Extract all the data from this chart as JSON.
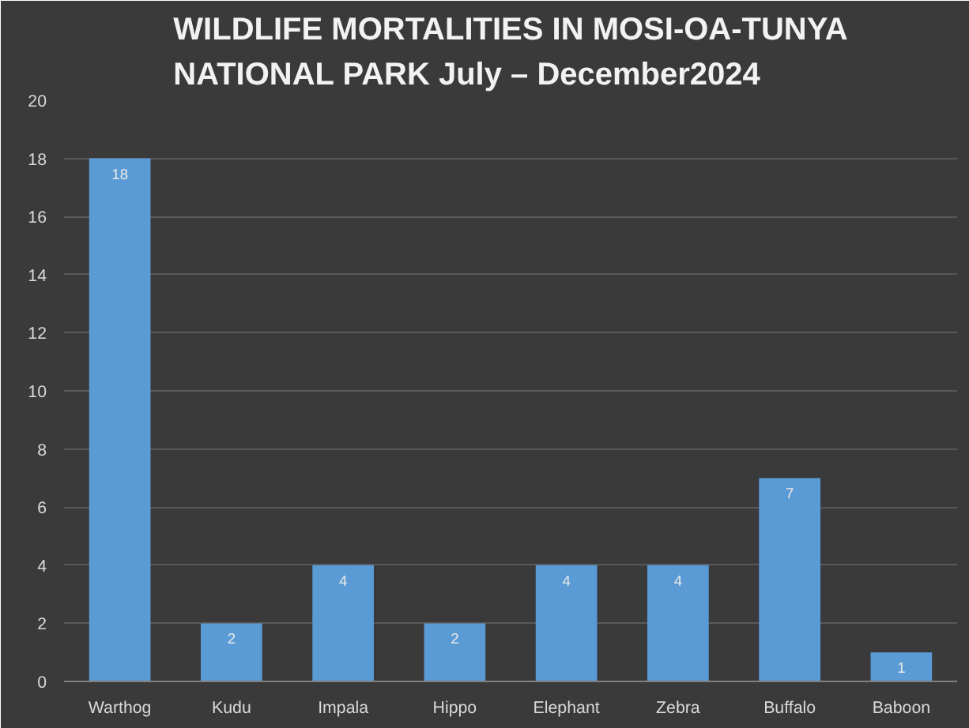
{
  "chart_data": {
    "type": "bar",
    "title": "WILDLIFE MORTALITIES IN MOSI-OA-TUNYA\nNATIONAL PARK July – December2024",
    "categories": [
      "Warthog",
      "Kudu",
      "Impala",
      "Hippo",
      "Elephant",
      "Zebra",
      "Buffalo",
      "Baboon"
    ],
    "values": [
      18,
      2,
      4,
      2,
      4,
      4,
      7,
      1
    ],
    "color": "#5b9bd5",
    "ylim": [
      0,
      20
    ],
    "yticks": [
      0,
      2,
      4,
      6,
      8,
      10,
      12,
      14,
      16,
      18,
      20
    ],
    "grid": "y",
    "data_labels": true
  }
}
